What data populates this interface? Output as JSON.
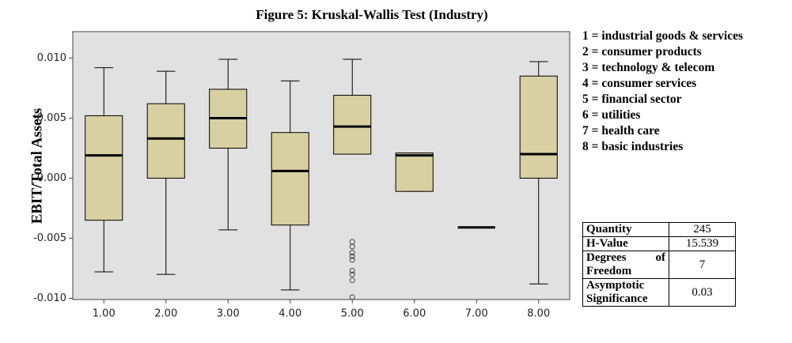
{
  "chart_data": {
    "type": "box",
    "title": "Figure 5: Kruskal-Wallis Test (Industry)",
    "ylabel": "EBIT/Total Assets",
    "categories": [
      "1.00",
      "2.00",
      "3.00",
      "4.00",
      "5.00",
      "6.00",
      "7.00",
      "8.00"
    ],
    "boxes": [
      {
        "min": -0.0078,
        "q1": -0.0035,
        "median": 0.0019,
        "q3": 0.0052,
        "max": 0.0092,
        "outliers": []
      },
      {
        "min": -0.008,
        "q1": 0.0,
        "median": 0.0033,
        "q3": 0.0062,
        "max": 0.0089,
        "outliers": []
      },
      {
        "min": -0.0043,
        "q1": 0.0025,
        "median": 0.005,
        "q3": 0.0074,
        "max": 0.0099,
        "outliers": []
      },
      {
        "min": -0.0093,
        "q1": -0.0039,
        "median": 0.0006,
        "q3": 0.0038,
        "max": 0.0081,
        "outliers": []
      },
      {
        "min": 0.002,
        "q1": 0.002,
        "median": 0.0043,
        "q3": 0.0069,
        "max": 0.0099,
        "outliers": [
          -0.0053,
          -0.0057,
          -0.0062,
          -0.0065,
          -0.0068,
          -0.0077,
          -0.008,
          -0.0085,
          -0.0099
        ]
      },
      {
        "min": -0.0011,
        "q1": -0.0011,
        "median": 0.0019,
        "q3": 0.0021,
        "max": 0.0021,
        "outliers": []
      },
      {
        "min": -0.0041,
        "q1": -0.0041,
        "median": -0.0041,
        "q3": -0.0041,
        "max": -0.0041,
        "outliers": []
      },
      {
        "min": -0.0088,
        "q1": 0.0,
        "median": 0.002,
        "q3": 0.0085,
        "max": 0.0097,
        "outliers": []
      }
    ],
    "color": "#d8d0a2",
    "ylim": [
      -0.0101,
      0.0122
    ],
    "yticks": [
      {
        "value": -0.01,
        "label": "-0.010"
      },
      {
        "value": -0.005,
        "label": "-0.005"
      },
      {
        "value": 0,
        "label": "0.000"
      },
      {
        "value": 0.005,
        "label": "0.005"
      },
      {
        "value": 0.01,
        "label": "0.010"
      }
    ]
  },
  "notes": [
    "1 = industrial goods & services",
    "2 = consumer products",
    "3 = technology & telecom",
    "4 = consumer services",
    "5 = financial sector",
    "6 = utilities",
    "7 = health care",
    "8 = basic industries"
  ],
  "table": {
    "rows": [
      [
        "Quantity",
        "245"
      ],
      [
        "H-Value",
        "15.539"
      ],
      [
        "Degrees of Freedom",
        "7"
      ],
      [
        "Asymptotic Significance",
        "0.03"
      ]
    ]
  }
}
